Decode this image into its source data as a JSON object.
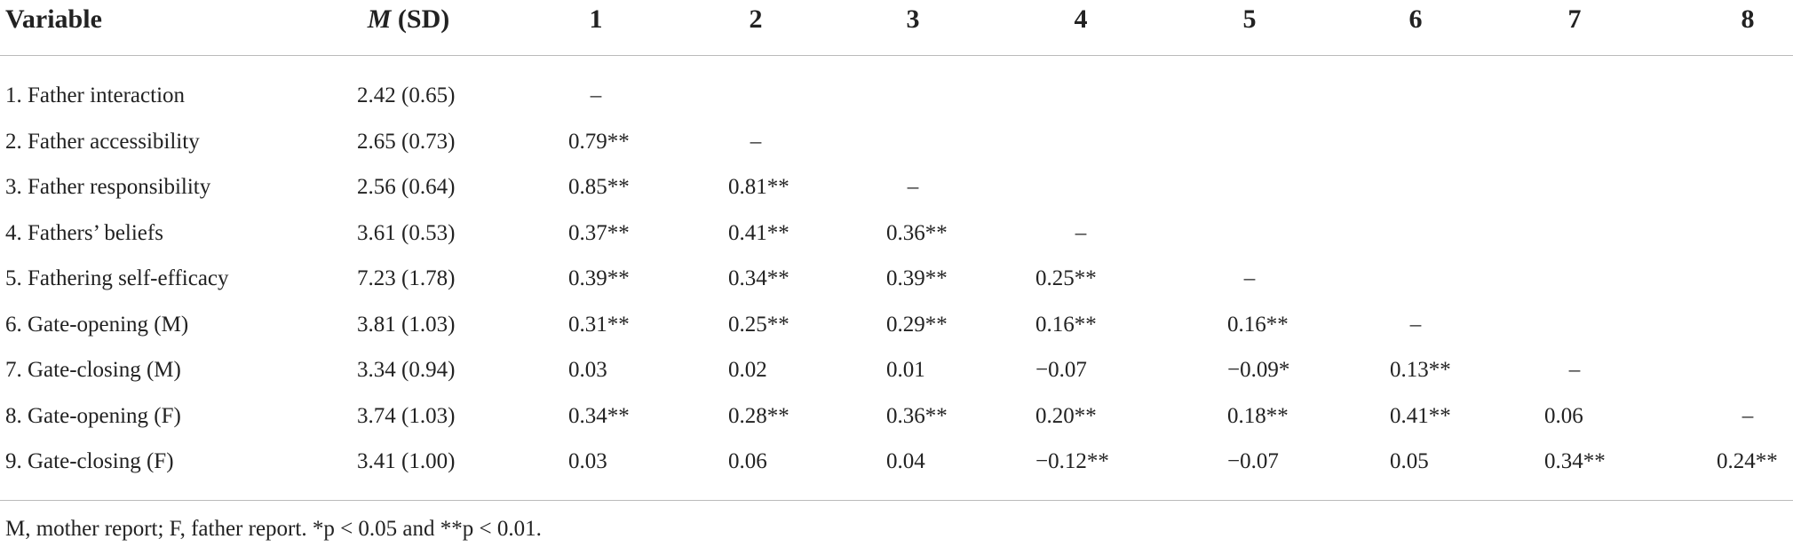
{
  "table": {
    "header": [
      "Variable",
      {
        "italic": "M",
        "text": " (SD)"
      },
      "1",
      "2",
      "3",
      "4",
      "5",
      "6",
      "7",
      "8"
    ],
    "rows": [
      {
        "label": "1. Father interaction",
        "msd": "2.42 (0.65)",
        "cells": [
          "–"
        ]
      },
      {
        "label": "2. Father accessibility",
        "msd": "2.65 (0.73)",
        "cells": [
          "0.79**",
          "–"
        ]
      },
      {
        "label": "3. Father responsibility",
        "msd": "2.56 (0.64)",
        "cells": [
          "0.85**",
          "0.81**",
          "–"
        ]
      },
      {
        "label": "4. Fathers’ beliefs",
        "msd": "3.61 (0.53)",
        "cells": [
          "0.37**",
          "0.41**",
          "0.36**",
          "–"
        ]
      },
      {
        "label": "5. Fathering self-efficacy",
        "msd": "7.23 (1.78)",
        "cells": [
          "0.39**",
          "0.34**",
          "0.39**",
          "0.25**",
          "–"
        ]
      },
      {
        "label": "6. Gate-opening (M)",
        "msd": "3.81 (1.03)",
        "cells": [
          "0.31**",
          "0.25**",
          "0.29**",
          "0.16**",
          "0.16**",
          "–"
        ]
      },
      {
        "label": "7. Gate-closing (M)",
        "msd": "3.34 (0.94)",
        "cells": [
          "0.03",
          "0.02",
          "0.01",
          "−0.07",
          "−0.09*",
          "0.13**",
          "–"
        ]
      },
      {
        "label": "8. Gate-opening (F)",
        "msd": "3.74 (1.03)",
        "cells": [
          "0.34**",
          "0.28**",
          "0.36**",
          "0.20**",
          "0.18**",
          "0.41**",
          "0.06",
          "–"
        ]
      },
      {
        "label": "9. Gate-closing (F)",
        "msd": "3.41 (1.00)",
        "cells": [
          "0.03",
          "0.06",
          "0.04",
          "−0.12**",
          "−0.07",
          "0.05",
          "0.34**",
          "0.24**"
        ]
      }
    ],
    "footnote": "M, mother report; F, father report. *p < 0.05 and **p < 0.01."
  }
}
